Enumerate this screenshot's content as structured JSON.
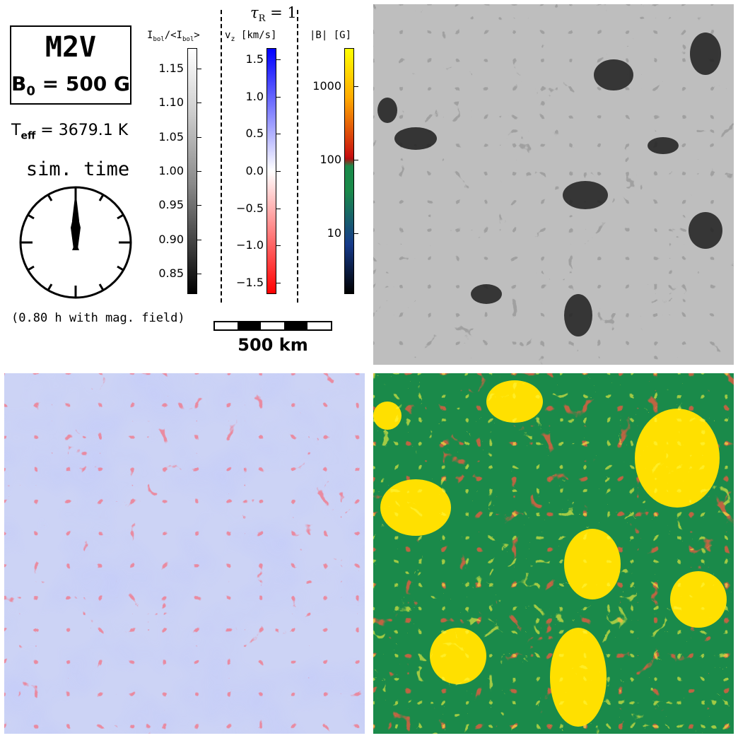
{
  "star": {
    "type": "M2V",
    "b0_symbol": "B",
    "b0_sub": "0",
    "b0_value": " = 500 G",
    "teff_symbol": "T",
    "teff_sub": "eff",
    "teff_value": " = 3679.1 K"
  },
  "sim_time": {
    "label": "sim. time",
    "note": "(0.80 h with mag. field)"
  },
  "surface": {
    "tau_symbol": "τ",
    "tau_sub": "R",
    "tau_value": " = 1"
  },
  "colorbars": {
    "intensity": {
      "label_main": "I",
      "label_sub": "bol",
      "label_mid": "/<I",
      "label_sub2": "bol",
      "label_end": ">",
      "ticks": [
        "1.15",
        "1.10",
        "1.05",
        "1.00",
        "0.95",
        "0.90",
        "0.85"
      ],
      "range": [
        0.82,
        1.18
      ]
    },
    "velocity": {
      "label_main": "v",
      "label_sub": "z",
      "label_end": " [km/s]",
      "ticks": [
        "1.5",
        "1.0",
        "0.5",
        "0.0",
        "−0.5",
        "−1.0",
        "−1.5"
      ],
      "range": [
        -1.65,
        1.65
      ],
      "colors": {
        "positive": "#0000ff",
        "zero": "#ffffff",
        "negative": "#ff0000"
      }
    },
    "field": {
      "label": "|B| [G]",
      "ticks": [
        "1000",
        "100",
        "10"
      ],
      "scale": "log",
      "colors": [
        "#000000",
        "#1a2a8a",
        "#1a8a4a",
        "#c01010",
        "#ff8800",
        "#ffff00"
      ]
    }
  },
  "scalebar": {
    "label": "500 km"
  },
  "panels": {
    "intensity_bg": "#a9a9a9",
    "velocity_bg": "#ccd3f5",
    "field_bg": "#1a8a4a"
  }
}
